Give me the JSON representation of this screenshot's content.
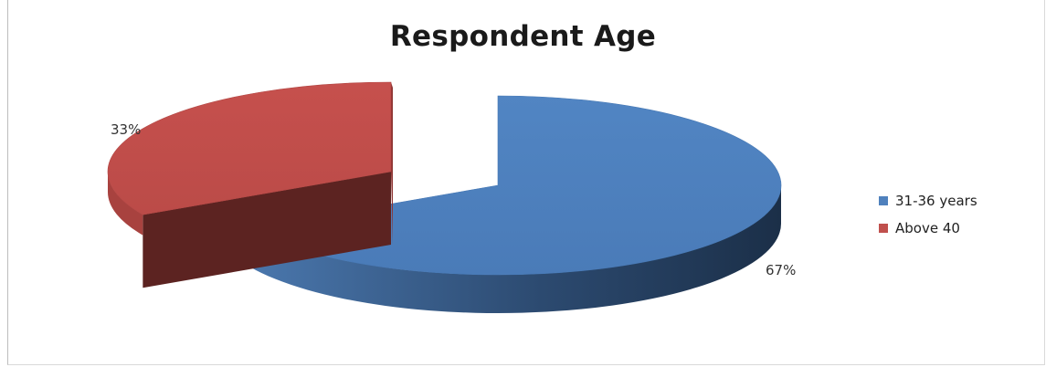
{
  "chart_data": {
    "type": "pie",
    "title": "Respondent Age",
    "categories": [
      "31-36 years",
      "Above 40"
    ],
    "values": [
      67,
      33
    ],
    "data_labels": [
      "67%",
      "33%"
    ],
    "colors": [
      "#4f81bd",
      "#c0504d"
    ],
    "legend_position": "right",
    "style": "3d-exploded"
  }
}
